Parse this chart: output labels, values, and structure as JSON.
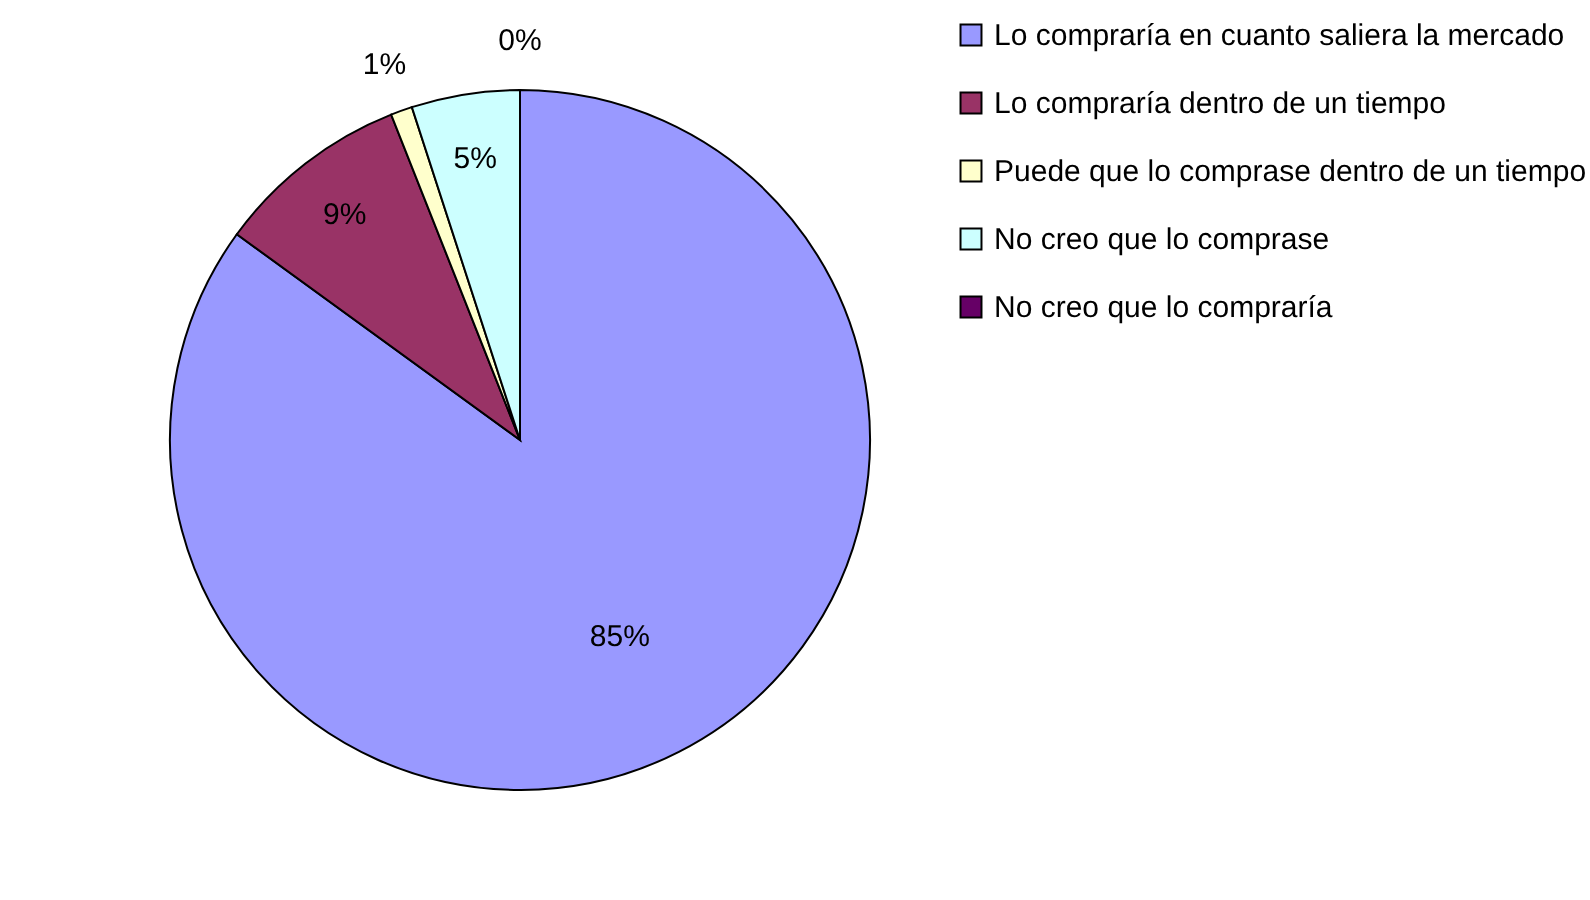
{
  "chart_data": {
    "type": "pie",
    "categories": [
      "Lo compraría en cuanto saliera la mercado",
      "Lo compraría dentro de un tiempo",
      "Puede que lo comprase dentro de un tiempo",
      "No creo que lo comprase",
      "No creo que lo compraría"
    ],
    "values": [
      85,
      9,
      1,
      5,
      0
    ],
    "colors": [
      "#9999ff",
      "#993366",
      "#ffffcc",
      "#ccffff",
      "#660066"
    ],
    "value_labels": [
      "85%",
      "9%",
      "1%",
      "5%",
      "0%"
    ],
    "legend": "right"
  }
}
